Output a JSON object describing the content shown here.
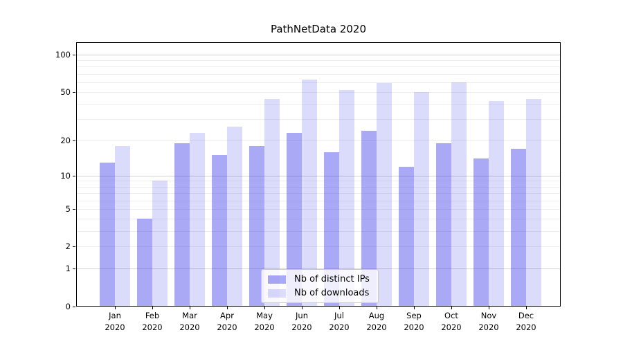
{
  "figure": {
    "title": "PathNetData 2020"
  },
  "chart_data": {
    "type": "bar",
    "title": "PathNetData 2020",
    "xlabel": "",
    "ylabel": "",
    "y_scale": "log1p (symlog-like: 0,1,2,5,10,20,50,100)",
    "ylim": [
      0,
      126
    ],
    "grid": true,
    "legend_position": "lower center",
    "categories": [
      "Jan 2020",
      "Feb 2020",
      "Mar 2020",
      "Apr 2020",
      "May 2020",
      "Jun 2020",
      "Jul 2020",
      "Aug 2020",
      "Sep 2020",
      "Oct 2020",
      "Nov 2020",
      "Dec 2020"
    ],
    "series": [
      {
        "name": "Nb of distinct IPs",
        "color": "rgba(30,30,230,0.38)",
        "values": [
          13,
          4,
          19,
          15,
          18,
          23,
          16,
          24,
          12,
          19,
          14,
          17
        ]
      },
      {
        "name": "Nb of downloads",
        "color": "rgba(30,30,230,0.16)",
        "values": [
          18,
          9,
          23,
          26,
          44,
          63,
          52,
          59,
          50,
          60,
          42,
          44
        ]
      }
    ],
    "yticks": [
      0,
      1,
      2,
      5,
      10,
      20,
      50,
      100
    ],
    "gridlines": {
      "major": [
        1,
        10,
        100
      ],
      "minor": [
        2,
        3,
        4,
        5,
        6,
        7,
        8,
        9,
        20,
        30,
        40,
        50,
        60,
        70,
        80,
        90
      ]
    },
    "colors": {
      "text": "#000000",
      "spine": "#000000",
      "grid_major": "#d0d0d0",
      "grid_minor": "#ededed"
    }
  }
}
